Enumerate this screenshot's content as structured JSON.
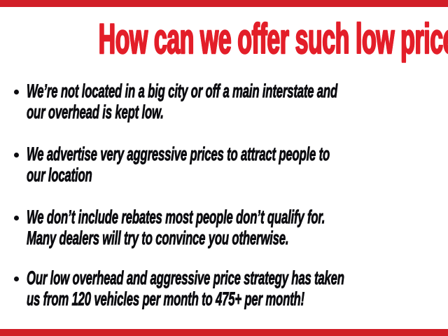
{
  "slide": {
    "title": "How can we offer such low prices?",
    "bullets": [
      {
        "lines": [
          "We’re not located in a big city or off a main interstate and",
          "our overhead is kept low."
        ]
      },
      {
        "lines": [
          "We advertise very aggressive prices to attract people to",
          "our location"
        ]
      },
      {
        "lines": [
          "We don’t include rebates most people don’t qualify for.",
          "Many dealers will try to convince you otherwise."
        ]
      },
      {
        "lines": [
          "Our low overhead and aggressive price strategy has taken",
          "us from 120 vehicles per month to 475+ per month!"
        ]
      }
    ],
    "colors": {
      "title_red": "#e31e29",
      "bar_red": "#d11e27",
      "text_black": "#0c0c10",
      "background": "#ffffff"
    }
  }
}
